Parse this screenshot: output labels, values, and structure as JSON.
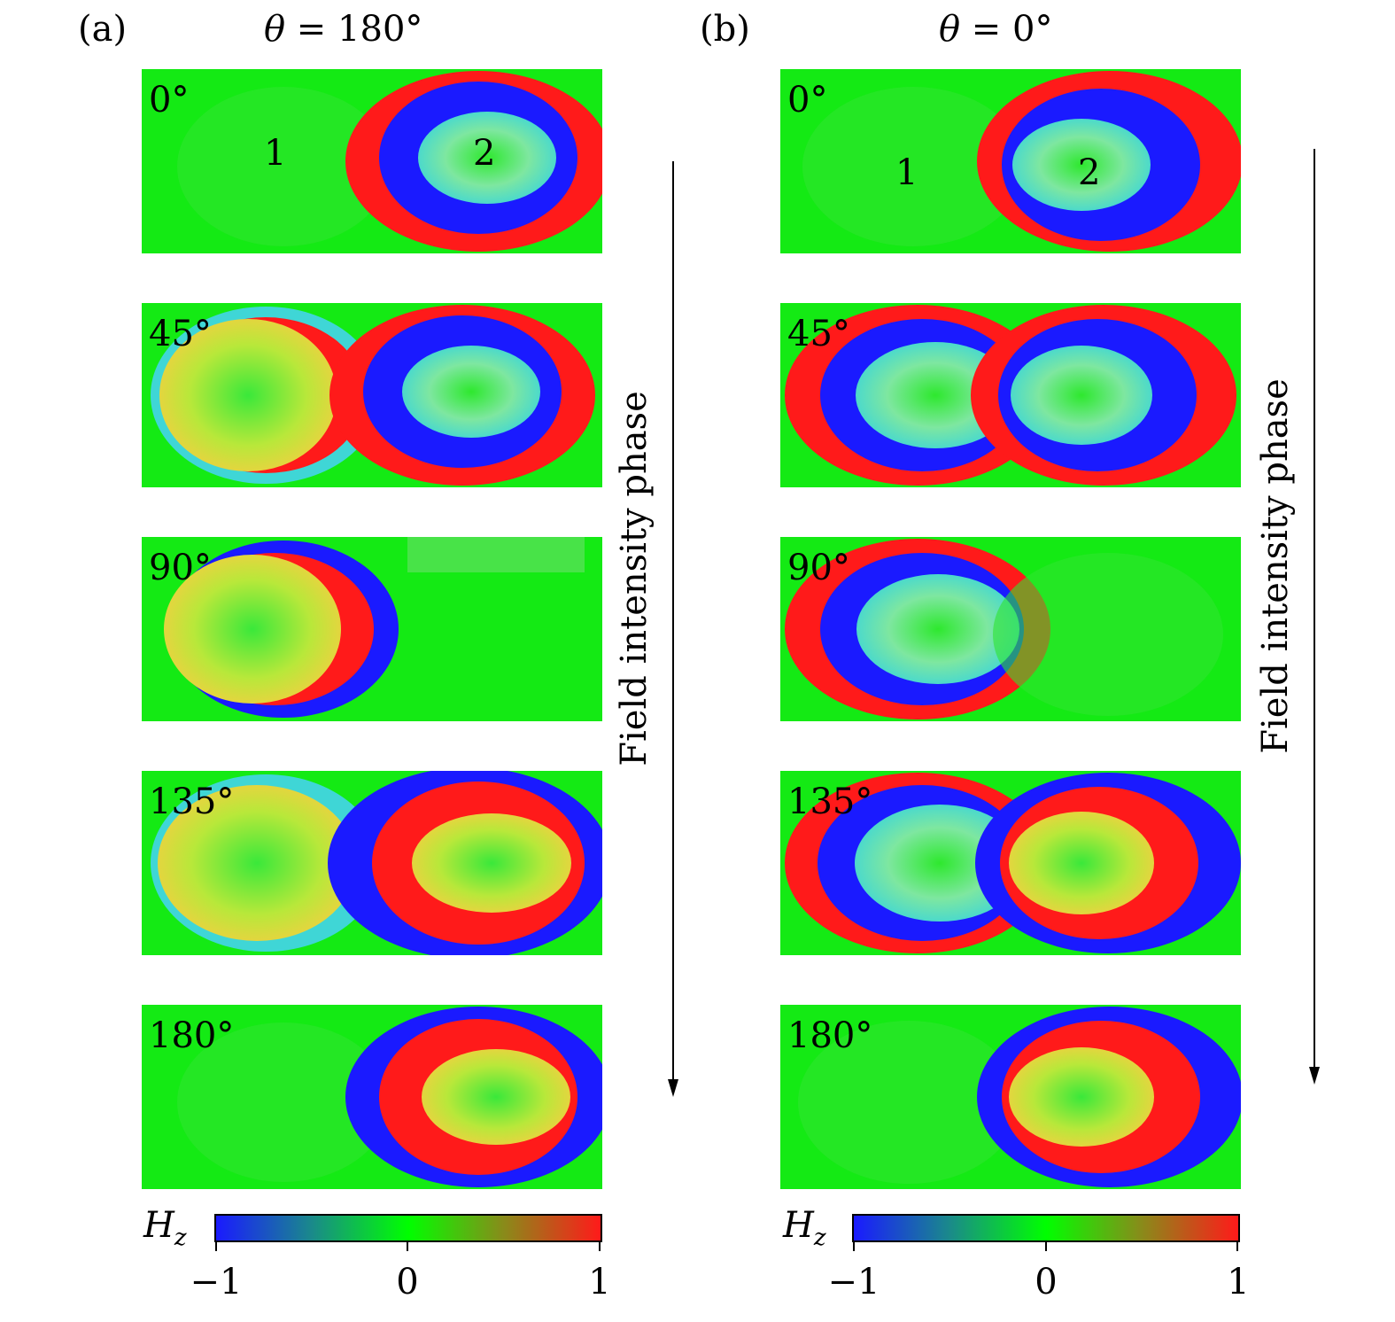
{
  "figure": {
    "panel_a": {
      "label": "(a)",
      "title_var": "θ",
      "title_eq": " = 180°",
      "phases": [
        "0°",
        "45°",
        "90°",
        "135°",
        "180°"
      ],
      "resonator_labels": [
        "1",
        "2"
      ],
      "side_label": "Field intensity phase"
    },
    "panel_b": {
      "label": "(b)",
      "title_var": "θ",
      "title_eq": " = 0°",
      "phases": [
        "0°",
        "45°",
        "90°",
        "135°",
        "180°"
      ],
      "resonator_labels": [
        "1",
        "2"
      ],
      "side_label": "Field intensity phase"
    },
    "colorbar": {
      "symbol": "H",
      "subscript": "z",
      "ticks": [
        "−1",
        "0",
        "1"
      ],
      "colors": [
        "#1a1aff",
        "#00ff00",
        "#ff1a1a"
      ]
    }
  }
}
